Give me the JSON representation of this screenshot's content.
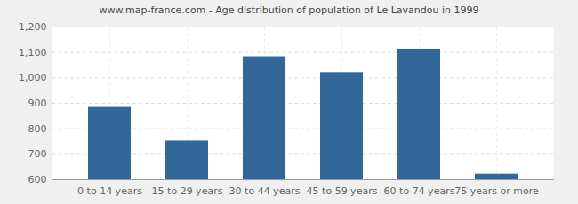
{
  "chart_data": {
    "type": "bar",
    "title": "www.map-france.com - Age distribution of population of Le Lavandou in 1999",
    "categories": [
      "0 to 14 years",
      "15 to 29 years",
      "30 to 44 years",
      "45 to 59 years",
      "60 to 74 years",
      "75 years or more"
    ],
    "values": [
      884,
      752,
      1083,
      1021,
      1113,
      622
    ],
    "color": "#336699",
    "ylim": [
      600,
      1200
    ],
    "yticks": [
      600,
      700,
      800,
      900,
      1000,
      1100,
      1200
    ],
    "grid": true
  }
}
